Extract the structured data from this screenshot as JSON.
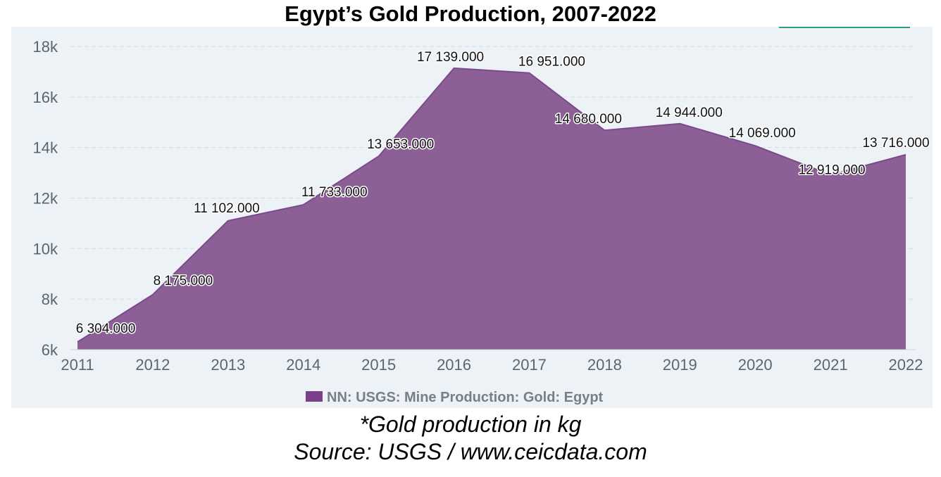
{
  "title": "Egypt’s Gold Production, 2007-2022",
  "footnote_unit": "*Gold production in kg",
  "footnote_source": "Source: USGS / www.ceicdata.com",
  "colors": {
    "area_fill": "#8c5f97",
    "area_line": "#7b4a8b",
    "legend_swatch": "#7b3f8c",
    "panel_bg": "#edf2f7",
    "grid": "#d5dbe3",
    "axis_text": "#5c6670",
    "label_text": "#111111",
    "corner_accent": "#2e9c88"
  },
  "chart_data": {
    "type": "area",
    "categories": [
      "2011",
      "2012",
      "2013",
      "2014",
      "2015",
      "2016",
      "2017",
      "2018",
      "2019",
      "2020",
      "2021",
      "2022"
    ],
    "series": [
      {
        "name": "NN: USGS: Mine Production: Gold: Egypt",
        "values": [
          6304,
          8175,
          11102,
          11733,
          13653,
          17139,
          16951,
          14680,
          14944,
          14069,
          12919,
          13716
        ]
      }
    ],
    "data_labels": [
      "6 304.000",
      "8 175.000",
      "11 102.000",
      "11 733.000",
      "13 653.000",
      "17 139.000",
      "16 951.000",
      "14 680.000",
      "14 944.000",
      "14 069.000",
      "12 919.000",
      "13 716.000"
    ],
    "ylim": [
      6000,
      18000
    ],
    "y_ticks": [
      6000,
      8000,
      10000,
      12000,
      14000,
      16000,
      18000
    ],
    "y_tick_labels": [
      "6k",
      "8k",
      "10k",
      "12k",
      "14k",
      "16k",
      "18k"
    ],
    "grid": true,
    "legend_position": "bottom-center"
  }
}
